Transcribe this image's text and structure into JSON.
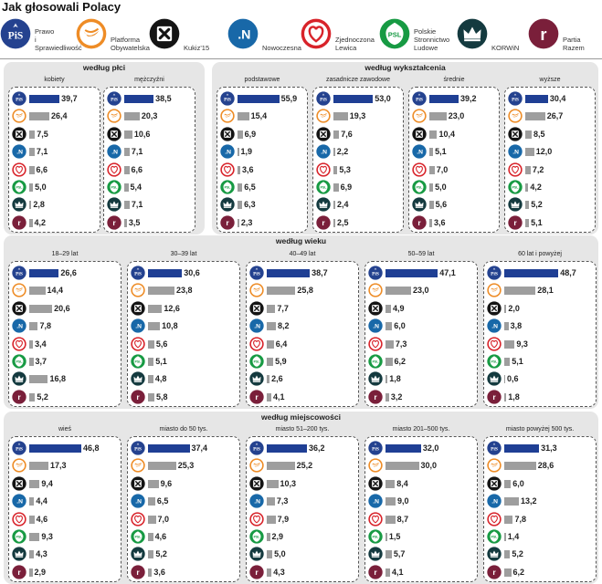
{
  "title": "Jak głosowali Polacy",
  "colors": {
    "pis_bar": "#1f3f94",
    "other_bar": "#9e9e9e",
    "band": "#e6e6e6"
  },
  "parties": [
    {
      "key": "pis",
      "icon": "pis-icon",
      "label": "Prawo\ni Sprawiedliwość",
      "abbr": "PiS",
      "color": "#24428f"
    },
    {
      "key": "po",
      "icon": "po-icon",
      "label": "Platforma\nObywatelska",
      "abbr": "",
      "color": "#ee8c26"
    },
    {
      "key": "kukiz",
      "icon": "kukiz-icon",
      "label": "Kukiz'15",
      "abbr": "",
      "color": "#141414"
    },
    {
      "key": "n",
      "icon": "nowoczesna-icon",
      "label": "Nowoczesna",
      "abbr": ".N",
      "color": "#1868a8"
    },
    {
      "key": "zl",
      "icon": "zl-icon",
      "label": "Zjednoczona\nLewica",
      "abbr": "",
      "color": "#d8232a"
    },
    {
      "key": "psl",
      "icon": "psl-icon",
      "label": "Polskie\nStronnictwo\nLudowe",
      "abbr": "PSL",
      "color": "#179a43"
    },
    {
      "key": "korwin",
      "icon": "korwin-icon",
      "label": "KORWiN",
      "abbr": "",
      "color": "#143a3f"
    },
    {
      "key": "razem",
      "icon": "razem-icon",
      "label": "Partia\nRazem",
      "abbr": "r",
      "color": "#7a1f3a"
    }
  ],
  "chart_data": [
    {
      "type": "bar",
      "title": "według płci",
      "categories": [
        "kobiety",
        "mężczyźni"
      ],
      "series": [
        {
          "name": "Prawo i Sprawiedliwość",
          "values": [
            39.7,
            38.5
          ]
        },
        {
          "name": "Platforma Obywatelska",
          "values": [
            26.4,
            20.3
          ]
        },
        {
          "name": "Kukiz'15",
          "values": [
            7.5,
            10.6
          ]
        },
        {
          "name": "Nowoczesna",
          "values": [
            7.1,
            7.1
          ]
        },
        {
          "name": "Zjednoczona Lewica",
          "values": [
            6.6,
            6.6
          ]
        },
        {
          "name": "Polskie Stronnictwo Ludowe",
          "values": [
            5.0,
            5.4
          ]
        },
        {
          "name": "KORWiN",
          "values": [
            2.8,
            7.1
          ]
        },
        {
          "name": "Partia Razem",
          "values": [
            4.2,
            3.5
          ]
        }
      ]
    },
    {
      "type": "bar",
      "title": "według wykształcenia",
      "categories": [
        "podstawowe",
        "zasadnicze zawodowe",
        "średnie",
        "wyższe"
      ],
      "series": [
        {
          "name": "Prawo i Sprawiedliwość",
          "values": [
            55.9,
            53.0,
            39.2,
            30.4
          ]
        },
        {
          "name": "Platforma Obywatelska",
          "values": [
            15.4,
            19.3,
            23.0,
            26.7
          ]
        },
        {
          "name": "Kukiz'15",
          "values": [
            6.9,
            7.6,
            10.4,
            8.5
          ]
        },
        {
          "name": "Nowoczesna",
          "values": [
            1.9,
            2.2,
            5.1,
            12.0
          ]
        },
        {
          "name": "Zjednoczona Lewica",
          "values": [
            3.6,
            5.3,
            7.0,
            7.2
          ]
        },
        {
          "name": "Polskie Stronnictwo Ludowe",
          "values": [
            6.5,
            6.9,
            5.0,
            4.2
          ]
        },
        {
          "name": "KORWiN",
          "values": [
            6.3,
            2.4,
            5.6,
            5.2
          ]
        },
        {
          "name": "Partia Razem",
          "values": [
            2.3,
            2.5,
            3.6,
            5.1
          ]
        }
      ]
    },
    {
      "type": "bar",
      "title": "według wieku",
      "categories": [
        "18–29 lat",
        "30–39 lat",
        "40–49 lat",
        "50–59 lat",
        "60 lat i powyżej"
      ],
      "series": [
        {
          "name": "Prawo i Sprawiedliwość",
          "values": [
            26.6,
            30.6,
            38.7,
            47.1,
            48.7
          ]
        },
        {
          "name": "Platforma Obywatelska",
          "values": [
            14.4,
            23.8,
            25.8,
            23.0,
            28.1
          ]
        },
        {
          "name": "Kukiz'15",
          "values": [
            20.6,
            12.6,
            7.7,
            4.9,
            2.0
          ]
        },
        {
          "name": "Nowoczesna",
          "values": [
            7.8,
            10.8,
            8.2,
            6.0,
            3.8
          ]
        },
        {
          "name": "Zjednoczona Lewica",
          "values": [
            3.4,
            5.6,
            6.4,
            7.3,
            9.3
          ]
        },
        {
          "name": "Polskie Stronnictwo Ludowe",
          "values": [
            3.7,
            5.1,
            5.9,
            6.2,
            5.1
          ]
        },
        {
          "name": "KORWiN",
          "values": [
            16.8,
            4.8,
            2.6,
            1.8,
            0.6
          ]
        },
        {
          "name": "Partia Razem",
          "values": [
            5.2,
            5.8,
            4.1,
            3.2,
            1.8
          ]
        }
      ]
    },
    {
      "type": "bar",
      "title": "według miejscowości",
      "categories": [
        "wieś",
        "miasto do 50 tys.",
        "miasto 51–200 tys.",
        "miasto 201–500 tys.",
        "miasto powyżej 500 tys."
      ],
      "series": [
        {
          "name": "Prawo i Sprawiedliwość",
          "values": [
            46.8,
            37.4,
            36.2,
            32.0,
            31.3
          ]
        },
        {
          "name": "Platforma Obywatelska",
          "values": [
            17.3,
            25.3,
            25.2,
            30.0,
            28.6
          ]
        },
        {
          "name": "Kukiz'15",
          "values": [
            9.4,
            9.6,
            10.3,
            8.4,
            6.0
          ]
        },
        {
          "name": "Nowoczesna",
          "values": [
            4.4,
            6.5,
            7.3,
            9.0,
            13.2
          ]
        },
        {
          "name": "Zjednoczona Lewica",
          "values": [
            4.6,
            7.0,
            7.9,
            8.7,
            7.8
          ]
        },
        {
          "name": "Polskie Stronnictwo Ludowe",
          "values": [
            9.3,
            4.6,
            2.9,
            1.5,
            1.4
          ]
        },
        {
          "name": "KORWiN",
          "values": [
            4.3,
            5.2,
            5.0,
            5.7,
            5.2
          ]
        },
        {
          "name": "Partia Razem",
          "values": [
            2.9,
            3.6,
            4.3,
            4.1,
            6.2
          ]
        }
      ]
    }
  ]
}
